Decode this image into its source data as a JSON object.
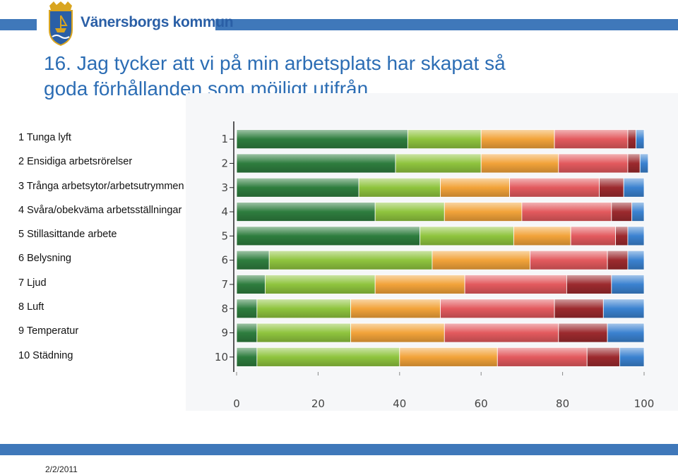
{
  "header": {
    "org_name": "Vänersborgs kommun",
    "logo_icon": "municipal-coat-of-arms-icon"
  },
  "title_line1": "16. Jag tycker att vi på min arbetsplats har skapat så",
  "title_line2": "goda  förhållanden som möjligt utifrån...",
  "legend_items": [
    "1 Tunga lyft",
    "2 Ensidiga arbetsrörelser",
    "3 Trånga arbetsytor/arbetsutrymmen",
    "4 Svåra/obekväma arbetsställningar",
    "5 Stillasittande arbete",
    "6 Belysning",
    "7 Ljud",
    "8 Luft",
    "9 Temperatur",
    "10 Städning"
  ],
  "footer": {
    "date": "2/2/2011"
  },
  "colors": {
    "accent_strip": "#3f78ba",
    "title": "#2c6db4",
    "segments": [
      "#2e7d3e",
      "#8fc43e",
      "#f2a33a",
      "#e35a5e",
      "#9c2a2e",
      "#3b82d0"
    ]
  },
  "chart_data": {
    "type": "bar",
    "orientation": "horizontal",
    "stacked": true,
    "title": "",
    "xlabel": "",
    "ylabel": "",
    "xlim": [
      0,
      100
    ],
    "x_ticks": [
      0,
      20,
      40,
      60,
      80,
      100
    ],
    "categories": [
      "1",
      "2",
      "3",
      "4",
      "5",
      "6",
      "7",
      "8",
      "9",
      "10"
    ],
    "series": [
      {
        "values": [
          42,
          39,
          30,
          34,
          45,
          8,
          7,
          5,
          5,
          5
        ]
      },
      {
        "values": [
          18,
          21,
          20,
          17,
          23,
          40,
          27,
          23,
          23,
          35
        ]
      },
      {
        "values": [
          18,
          19,
          17,
          19,
          14,
          24,
          22,
          22,
          23,
          24
        ]
      },
      {
        "values": [
          18,
          17,
          22,
          22,
          11,
          19,
          25,
          28,
          28,
          22
        ]
      },
      {
        "values": [
          2,
          3,
          6,
          5,
          3,
          5,
          11,
          12,
          12,
          8
        ]
      },
      {
        "values": [
          2,
          2,
          5,
          3,
          4,
          4,
          8,
          10,
          9,
          6
        ]
      }
    ],
    "grid": true,
    "legend": "none"
  }
}
